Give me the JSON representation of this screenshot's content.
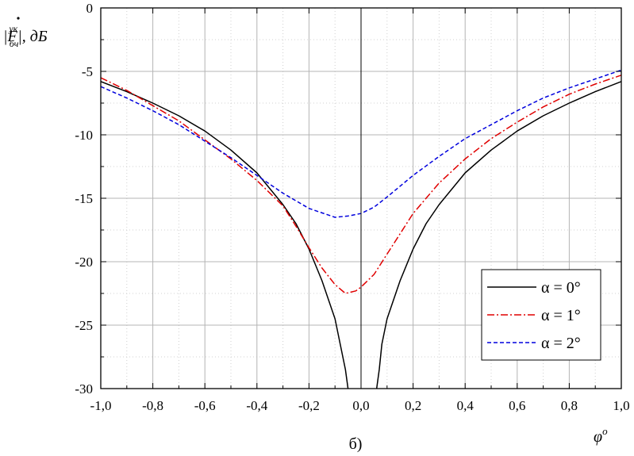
{
  "chart_data": {
    "type": "line",
    "ylabel": "|Ḟ бч ук|, дБ",
    "ylabel_parts": {
      "prefix": "|",
      "symbol": "F",
      "sub": "бч",
      "sup": "ук",
      "suffix": "|, дБ"
    },
    "xlabel": "φ°",
    "xlabel_parts": {
      "symbol": "φ",
      "sup": "o"
    },
    "caption": "б)",
    "xlim": [
      -1.0,
      1.0
    ],
    "ylim": [
      -30,
      0
    ],
    "x_ticks": [
      -1.0,
      -0.8,
      -0.6,
      -0.4,
      -0.2,
      0.0,
      0.2,
      0.4,
      0.6,
      0.8,
      1.0
    ],
    "x_tick_labels": [
      "-1,0",
      "-0,8",
      "-0,6",
      "-0,4",
      "-0,2",
      "0,0",
      "0,2",
      "0,4",
      "0,6",
      "0,8",
      "1,0"
    ],
    "y_ticks": [
      0,
      -5,
      -10,
      -15,
      -20,
      -25,
      -30
    ],
    "y_tick_labels": [
      "0",
      "-5",
      "-10",
      "-15",
      "-20",
      "-25",
      "-30"
    ],
    "grid": true,
    "legend_position": "bottom-right",
    "series": [
      {
        "name": "α = 0°",
        "color": "#000000",
        "dash": "solid",
        "points": [
          [
            -1.0,
            -5.8
          ],
          [
            -0.9,
            -6.6
          ],
          [
            -0.8,
            -7.5
          ],
          [
            -0.7,
            -8.5
          ],
          [
            -0.6,
            -9.7
          ],
          [
            -0.5,
            -11.2
          ],
          [
            -0.4,
            -13.0
          ],
          [
            -0.3,
            -15.5
          ],
          [
            -0.25,
            -17.0
          ],
          [
            -0.2,
            -19.0
          ],
          [
            -0.15,
            -21.5
          ],
          [
            -0.1,
            -24.5
          ],
          [
            -0.08,
            -26.5
          ],
          [
            -0.06,
            -28.5
          ],
          [
            -0.05,
            -30.0
          ],
          null,
          [
            0.06,
            -30.0
          ],
          [
            0.07,
            -28.5
          ],
          [
            0.08,
            -26.5
          ],
          [
            0.1,
            -24.5
          ],
          [
            0.15,
            -21.5
          ],
          [
            0.2,
            -19.0
          ],
          [
            0.25,
            -17.0
          ],
          [
            0.3,
            -15.5
          ],
          [
            0.4,
            -13.0
          ],
          [
            0.5,
            -11.2
          ],
          [
            0.6,
            -9.7
          ],
          [
            0.7,
            -8.5
          ],
          [
            0.8,
            -7.5
          ],
          [
            0.9,
            -6.6
          ],
          [
            1.0,
            -5.8
          ]
        ]
      },
      {
        "name": "α = 1°",
        "color": "#e00000",
        "dash": "dashdot",
        "points": [
          [
            -1.0,
            -5.5
          ],
          [
            -0.9,
            -6.5
          ],
          [
            -0.8,
            -7.7
          ],
          [
            -0.7,
            -8.9
          ],
          [
            -0.6,
            -10.4
          ],
          [
            -0.5,
            -11.9
          ],
          [
            -0.4,
            -13.6
          ],
          [
            -0.3,
            -15.6
          ],
          [
            -0.25,
            -17.2
          ],
          [
            -0.2,
            -18.9
          ],
          [
            -0.15,
            -20.5
          ],
          [
            -0.1,
            -21.8
          ],
          [
            -0.06,
            -22.5
          ],
          [
            -0.02,
            -22.3
          ],
          [
            0.0,
            -22.0
          ],
          [
            0.05,
            -21.0
          ],
          [
            0.1,
            -19.4
          ],
          [
            0.2,
            -16.2
          ],
          [
            0.3,
            -13.8
          ],
          [
            0.4,
            -11.9
          ],
          [
            0.5,
            -10.3
          ],
          [
            0.6,
            -9.0
          ],
          [
            0.7,
            -7.8
          ],
          [
            0.8,
            -6.8
          ],
          [
            0.9,
            -6.0
          ],
          [
            1.0,
            -5.3
          ]
        ]
      },
      {
        "name": "α = 2°",
        "color": "#0000dd",
        "dash": "dashed",
        "points": [
          [
            -1.0,
            -6.2
          ],
          [
            -0.9,
            -7.1
          ],
          [
            -0.8,
            -8.1
          ],
          [
            -0.7,
            -9.2
          ],
          [
            -0.6,
            -10.5
          ],
          [
            -0.5,
            -11.8
          ],
          [
            -0.4,
            -13.2
          ],
          [
            -0.3,
            -14.6
          ],
          [
            -0.2,
            -15.8
          ],
          [
            -0.1,
            -16.5
          ],
          [
            -0.05,
            -16.4
          ],
          [
            0.0,
            -16.2
          ],
          [
            0.05,
            -15.7
          ],
          [
            0.1,
            -14.9
          ],
          [
            0.2,
            -13.2
          ],
          [
            0.3,
            -11.7
          ],
          [
            0.4,
            -10.3
          ],
          [
            0.5,
            -9.2
          ],
          [
            0.6,
            -8.1
          ],
          [
            0.7,
            -7.1
          ],
          [
            0.8,
            -6.3
          ],
          [
            0.9,
            -5.6
          ],
          [
            1.0,
            -4.9
          ]
        ]
      }
    ]
  }
}
